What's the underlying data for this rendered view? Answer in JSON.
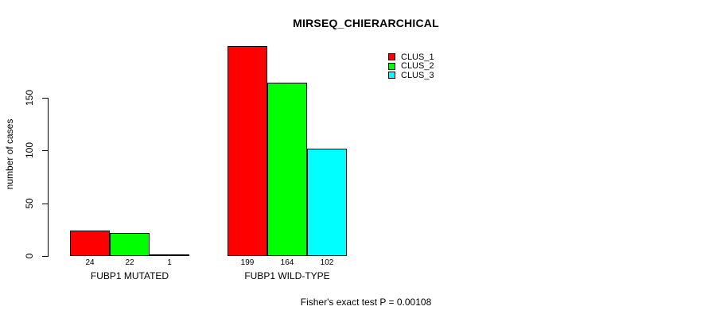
{
  "chart_data": {
    "type": "bar",
    "title": "MIRSEQ_CHIERARCHICAL",
    "ylabel": "number of cases",
    "xlabel": "",
    "ylim": [
      0,
      200
    ],
    "yticks": [
      0,
      50,
      100,
      150
    ],
    "grid": false,
    "legend_position": "top-right",
    "categories": [
      "FUBP1 MUTATED",
      "FUBP1 WILD-TYPE"
    ],
    "series": [
      {
        "name": "CLUS_1",
        "color": "#ff0000",
        "values": [
          24,
          199
        ]
      },
      {
        "name": "CLUS_2",
        "color": "#00ff00",
        "values": [
          22,
          164
        ]
      },
      {
        "name": "CLUS_3",
        "color": "#00ffff",
        "values": [
          1,
          102
        ]
      }
    ],
    "caption": "Fisher's exact test P = 0.00108",
    "colors": {
      "axis": "#000000",
      "text": "#000000",
      "background": "#ffffff"
    }
  }
}
